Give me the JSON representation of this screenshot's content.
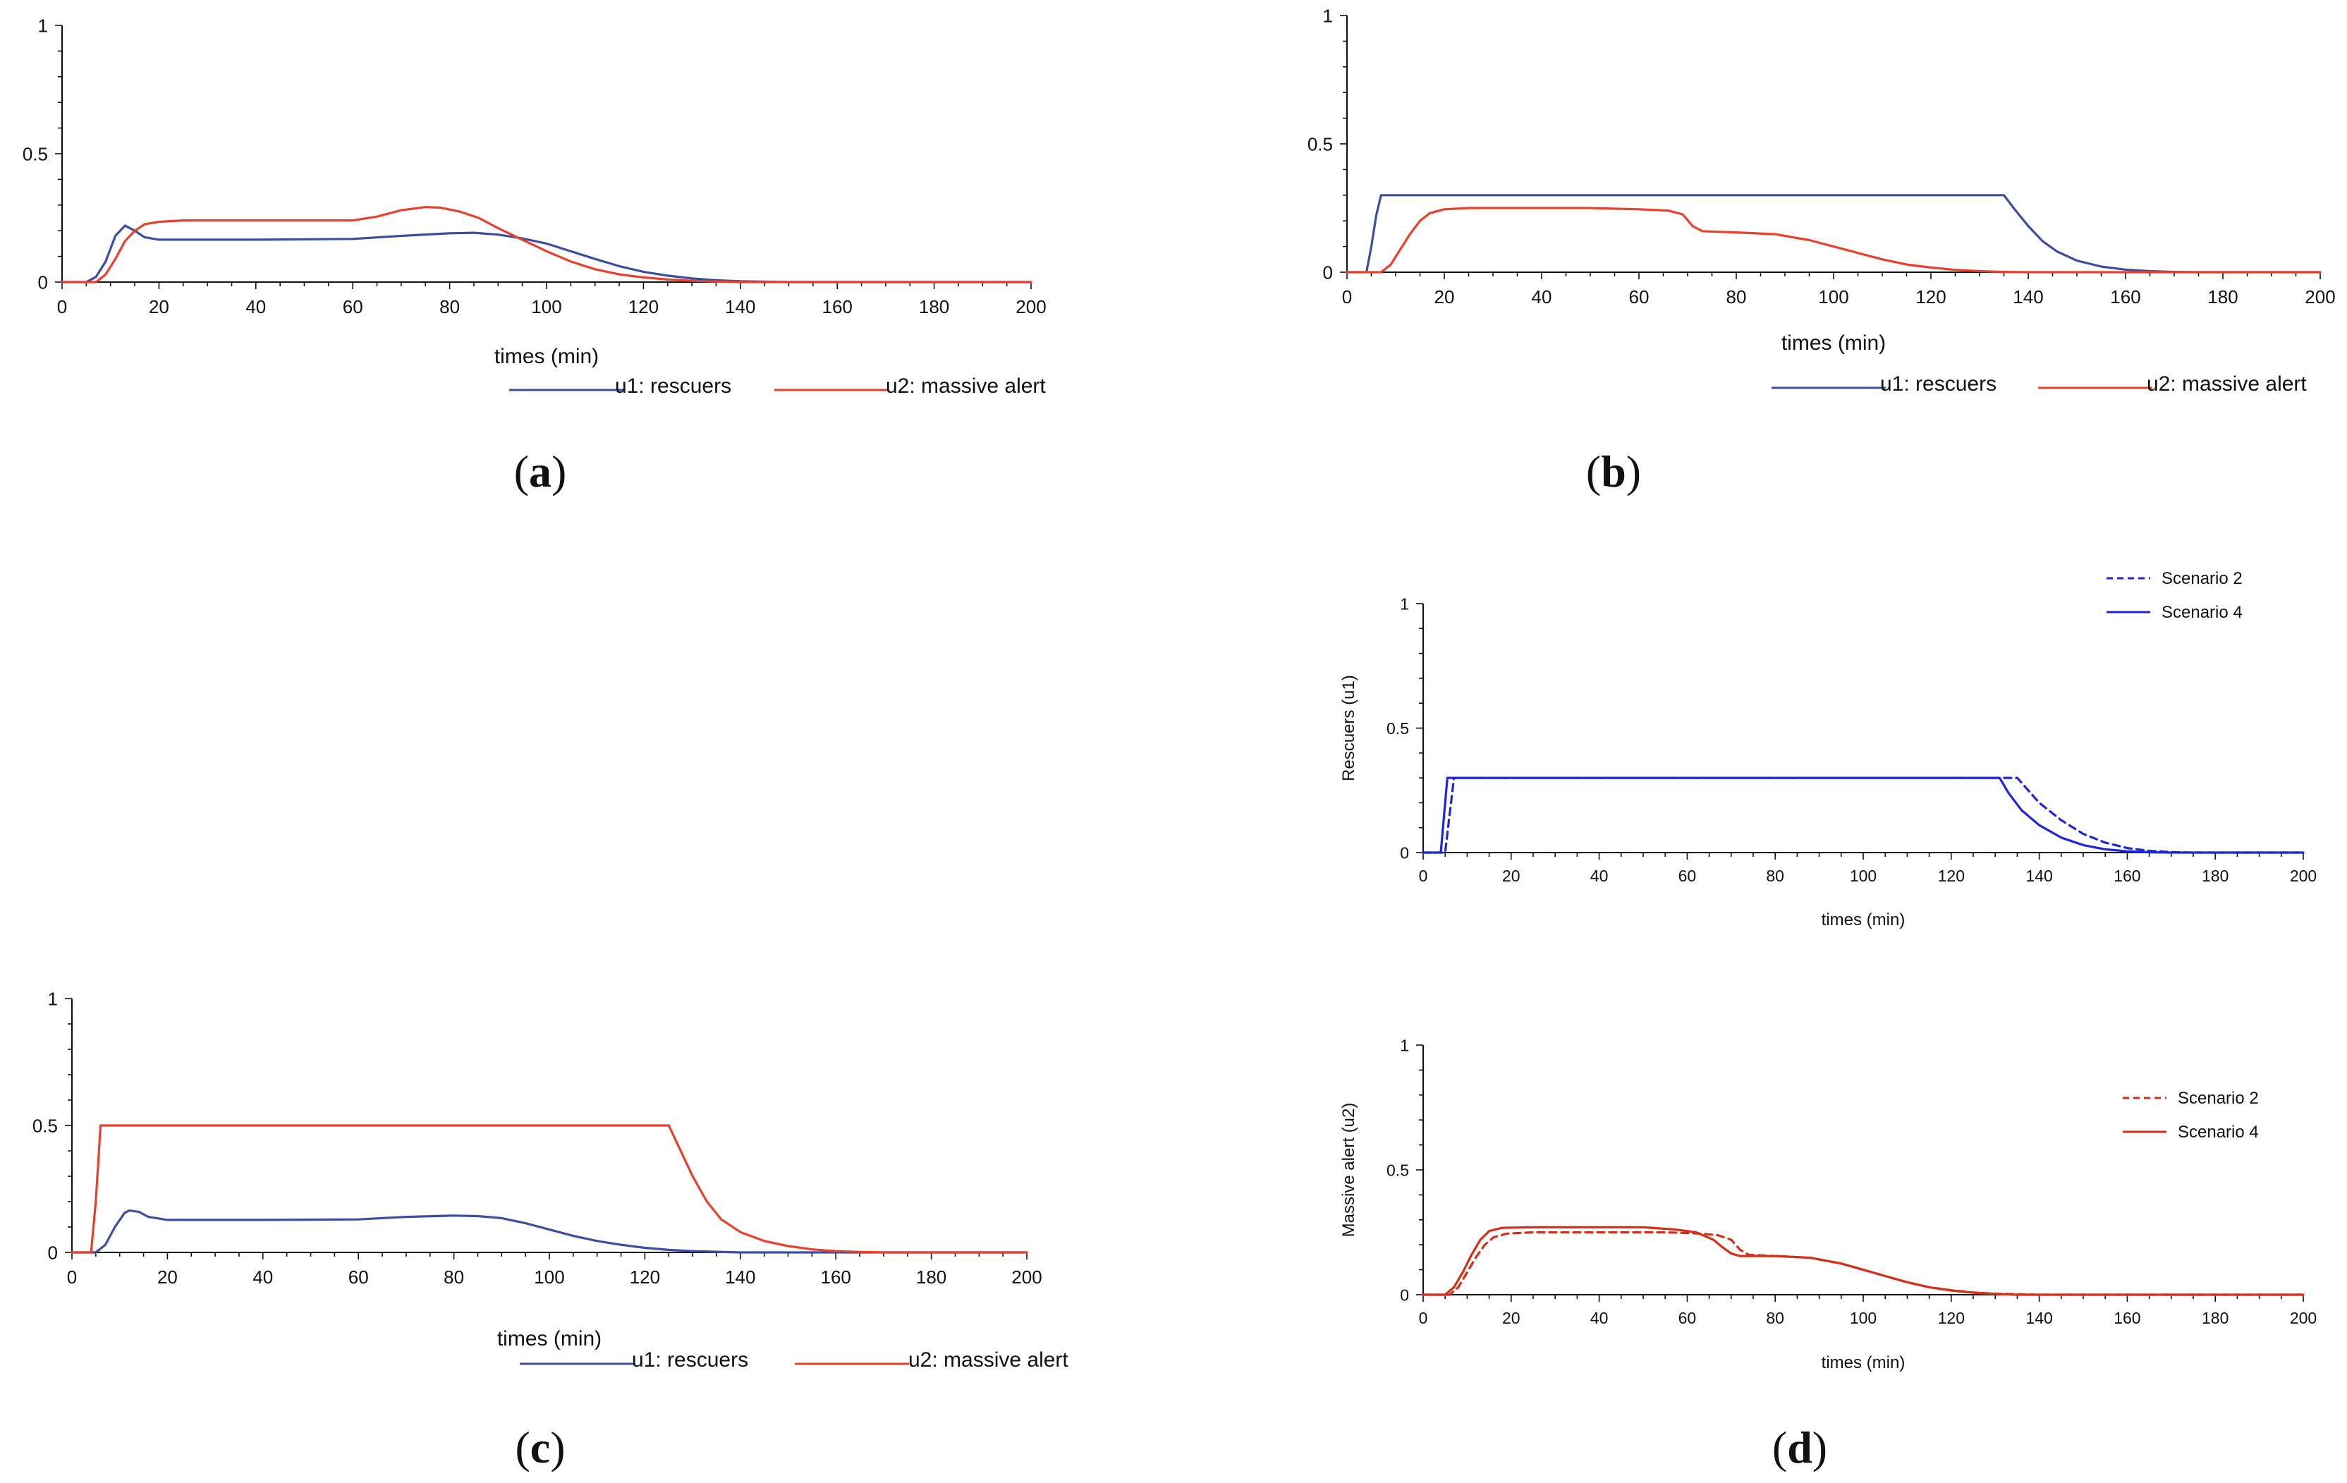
{
  "colors": {
    "u1": "#3c4ea0",
    "u2": "#e8402c",
    "s_blue": "#1f25d8",
    "s_red": "#d3301a",
    "axis": "#111111"
  },
  "chart_data": [
    {
      "id": "a",
      "type": "line",
      "caption_letter": "a",
      "xlabel": "times (min)",
      "ylabel": "",
      "xlim": [
        0,
        200
      ],
      "ylim": [
        0,
        1
      ],
      "xticks": [
        0,
        20,
        40,
        60,
        80,
        100,
        120,
        140,
        160,
        180,
        200
      ],
      "yticks": [
        0,
        0.5,
        1
      ],
      "ytick_labels": [
        "0",
        "0.5",
        "1"
      ],
      "legend_position": "bottom-right",
      "series": [
        {
          "name": "u1: rescuers",
          "color_key": "u1",
          "dash": false,
          "points": [
            [
              0,
              0
            ],
            [
              5,
              0
            ],
            [
              7,
              0.02
            ],
            [
              9,
              0.08
            ],
            [
              11,
              0.18
            ],
            [
              13,
              0.22
            ],
            [
              15,
              0.2
            ],
            [
              17,
              0.175
            ],
            [
              20,
              0.165
            ],
            [
              40,
              0.165
            ],
            [
              60,
              0.168
            ],
            [
              70,
              0.18
            ],
            [
              80,
              0.19
            ],
            [
              85,
              0.192
            ],
            [
              90,
              0.185
            ],
            [
              95,
              0.17
            ],
            [
              100,
              0.15
            ],
            [
              105,
              0.12
            ],
            [
              110,
              0.09
            ],
            [
              115,
              0.062
            ],
            [
              120,
              0.04
            ],
            [
              125,
              0.025
            ],
            [
              130,
              0.014
            ],
            [
              135,
              0.007
            ],
            [
              140,
              0.003
            ],
            [
              150,
              0
            ],
            [
              200,
              0
            ]
          ]
        },
        {
          "name": "u2: massive alert",
          "color_key": "u2",
          "dash": false,
          "points": [
            [
              0,
              0
            ],
            [
              7,
              0
            ],
            [
              9,
              0.03
            ],
            [
              11,
              0.09
            ],
            [
              13,
              0.16
            ],
            [
              15,
              0.2
            ],
            [
              17,
              0.225
            ],
            [
              20,
              0.235
            ],
            [
              25,
              0.24
            ],
            [
              60,
              0.24
            ],
            [
              65,
              0.255
            ],
            [
              70,
              0.28
            ],
            [
              75,
              0.292
            ],
            [
              78,
              0.29
            ],
            [
              82,
              0.275
            ],
            [
              86,
              0.25
            ],
            [
              90,
              0.21
            ],
            [
              95,
              0.165
            ],
            [
              100,
              0.12
            ],
            [
              105,
              0.08
            ],
            [
              110,
              0.05
            ],
            [
              115,
              0.03
            ],
            [
              120,
              0.018
            ],
            [
              125,
              0.01
            ],
            [
              130,
              0.005
            ],
            [
              135,
              0.002
            ],
            [
              140,
              0
            ],
            [
              200,
              0
            ]
          ]
        }
      ]
    },
    {
      "id": "b",
      "type": "line",
      "caption_letter": "b",
      "xlabel": "times (min)",
      "ylabel": "",
      "xlim": [
        0,
        200
      ],
      "ylim": [
        0,
        1
      ],
      "xticks": [
        0,
        20,
        40,
        60,
        80,
        100,
        120,
        140,
        160,
        180,
        200
      ],
      "yticks": [
        0,
        0.5,
        1
      ],
      "ytick_labels": [
        "0",
        "0.5",
        "1"
      ],
      "legend_position": "bottom-right",
      "series": [
        {
          "name": "u1: rescuers",
          "color_key": "u1",
          "dash": false,
          "points": [
            [
              0,
              0
            ],
            [
              4,
              0
            ],
            [
              5,
              0.1
            ],
            [
              6,
              0.22
            ],
            [
              7,
              0.3
            ],
            [
              135,
              0.3
            ],
            [
              137,
              0.25
            ],
            [
              140,
              0.18
            ],
            [
              143,
              0.12
            ],
            [
              146,
              0.08
            ],
            [
              150,
              0.045
            ],
            [
              155,
              0.022
            ],
            [
              160,
              0.01
            ],
            [
              165,
              0.004
            ],
            [
              170,
              0.001
            ],
            [
              175,
              0
            ],
            [
              200,
              0
            ]
          ]
        },
        {
          "name": "u2: massive alert",
          "color_key": "u2",
          "dash": false,
          "points": [
            [
              0,
              0
            ],
            [
              7,
              0
            ],
            [
              9,
              0.03
            ],
            [
              11,
              0.09
            ],
            [
              13,
              0.15
            ],
            [
              15,
              0.2
            ],
            [
              17,
              0.23
            ],
            [
              20,
              0.245
            ],
            [
              25,
              0.25
            ],
            [
              50,
              0.25
            ],
            [
              60,
              0.245
            ],
            [
              66,
              0.24
            ],
            [
              69,
              0.225
            ],
            [
              71,
              0.18
            ],
            [
              73,
              0.16
            ],
            [
              80,
              0.155
            ],
            [
              88,
              0.148
            ],
            [
              95,
              0.125
            ],
            [
              100,
              0.1
            ],
            [
              105,
              0.075
            ],
            [
              110,
              0.05
            ],
            [
              115,
              0.03
            ],
            [
              120,
              0.018
            ],
            [
              125,
              0.009
            ],
            [
              130,
              0.004
            ],
            [
              135,
              0.001
            ],
            [
              140,
              0
            ],
            [
              200,
              0
            ]
          ]
        }
      ]
    },
    {
      "id": "c",
      "type": "line",
      "caption_letter": "c",
      "xlabel": "times (min)",
      "ylabel": "",
      "xlim": [
        0,
        200
      ],
      "ylim": [
        0,
        1
      ],
      "xticks": [
        0,
        20,
        40,
        60,
        80,
        100,
        120,
        140,
        160,
        180,
        200
      ],
      "yticks": [
        0,
        0.5,
        1
      ],
      "ytick_labels": [
        "0",
        "0.5",
        "1"
      ],
      "legend_position": "bottom-right",
      "series": [
        {
          "name": "u1: rescuers",
          "color_key": "u1",
          "dash": false,
          "points": [
            [
              0,
              0
            ],
            [
              5,
              0
            ],
            [
              7,
              0.03
            ],
            [
              9,
              0.1
            ],
            [
              11,
              0.155
            ],
            [
              12,
              0.165
            ],
            [
              14,
              0.16
            ],
            [
              16,
              0.14
            ],
            [
              20,
              0.128
            ],
            [
              40,
              0.128
            ],
            [
              60,
              0.13
            ],
            [
              70,
              0.14
            ],
            [
              80,
              0.145
            ],
            [
              85,
              0.143
            ],
            [
              90,
              0.135
            ],
            [
              95,
              0.115
            ],
            [
              100,
              0.09
            ],
            [
              105,
              0.065
            ],
            [
              110,
              0.045
            ],
            [
              115,
              0.03
            ],
            [
              120,
              0.018
            ],
            [
              125,
              0.01
            ],
            [
              130,
              0.005
            ],
            [
              140,
              0
            ],
            [
              200,
              0
            ]
          ]
        },
        {
          "name": "u2: massive alert",
          "color_key": "u2",
          "dash": false,
          "points": [
            [
              0,
              0
            ],
            [
              4,
              0
            ],
            [
              5,
              0.2
            ],
            [
              6,
              0.5
            ],
            [
              125,
              0.5
            ],
            [
              127,
              0.42
            ],
            [
              130,
              0.3
            ],
            [
              133,
              0.2
            ],
            [
              136,
              0.13
            ],
            [
              140,
              0.08
            ],
            [
              145,
              0.045
            ],
            [
              150,
              0.025
            ],
            [
              155,
              0.012
            ],
            [
              160,
              0.005
            ],
            [
              165,
              0.002
            ],
            [
              170,
              0
            ],
            [
              200,
              0
            ]
          ]
        }
      ]
    },
    {
      "id": "d1",
      "type": "line",
      "caption_letter": "",
      "xlabel": "times (min)",
      "ylabel": "Rescuers (u1)",
      "xlim": [
        0,
        200
      ],
      "ylim": [
        0,
        1
      ],
      "xticks": [
        0,
        20,
        40,
        60,
        80,
        100,
        120,
        140,
        160,
        180,
        200
      ],
      "yticks": [
        0,
        0.5,
        1
      ],
      "ytick_labels": [
        "0",
        "0.5",
        "1"
      ],
      "legend_position": "top-right",
      "series": [
        {
          "name": "Scenario 2",
          "color_key": "s_blue",
          "dash": true,
          "points": [
            [
              0,
              0
            ],
            [
              5,
              0
            ],
            [
              6,
              0.15
            ],
            [
              7,
              0.3
            ],
            [
              135,
              0.3
            ],
            [
              137,
              0.26
            ],
            [
              140,
              0.2
            ],
            [
              145,
              0.13
            ],
            [
              150,
              0.075
            ],
            [
              155,
              0.04
            ],
            [
              160,
              0.018
            ],
            [
              165,
              0.007
            ],
            [
              170,
              0.002
            ],
            [
              175,
              0
            ],
            [
              200,
              0
            ]
          ]
        },
        {
          "name": "Scenario 4",
          "color_key": "s_blue",
          "dash": false,
          "points": [
            [
              0,
              0
            ],
            [
              4,
              0
            ],
            [
              5,
              0.2
            ],
            [
              5.5,
              0.3
            ],
            [
              131,
              0.3
            ],
            [
              133,
              0.24
            ],
            [
              136,
              0.17
            ],
            [
              140,
              0.11
            ],
            [
              145,
              0.06
            ],
            [
              150,
              0.03
            ],
            [
              155,
              0.013
            ],
            [
              160,
              0.005
            ],
            [
              165,
              0.001
            ],
            [
              170,
              0
            ],
            [
              200,
              0
            ]
          ]
        }
      ]
    },
    {
      "id": "d2",
      "type": "line",
      "caption_letter": "d",
      "xlabel": "times (min)",
      "ylabel": "Massive alert (u2)",
      "xlim": [
        0,
        200
      ],
      "ylim": [
        0,
        1
      ],
      "xticks": [
        0,
        20,
        40,
        60,
        80,
        100,
        120,
        140,
        160,
        180,
        200
      ],
      "yticks": [
        0,
        0.5,
        1
      ],
      "ytick_labels": [
        "0",
        "0.5",
        "1"
      ],
      "legend_position": "right",
      "series": [
        {
          "name": "Scenario 2",
          "color_key": "s_red",
          "dash": true,
          "points": [
            [
              0,
              0
            ],
            [
              6,
              0
            ],
            [
              8,
              0.03
            ],
            [
              10,
              0.09
            ],
            [
              12,
              0.15
            ],
            [
              14,
              0.2
            ],
            [
              16,
              0.23
            ],
            [
              19,
              0.245
            ],
            [
              25,
              0.25
            ],
            [
              55,
              0.25
            ],
            [
              63,
              0.245
            ],
            [
              67,
              0.238
            ],
            [
              70,
              0.22
            ],
            [
              72,
              0.18
            ],
            [
              74,
              0.16
            ],
            [
              80,
              0.155
            ],
            [
              88,
              0.148
            ],
            [
              95,
              0.125
            ],
            [
              100,
              0.1
            ],
            [
              105,
              0.075
            ],
            [
              110,
              0.05
            ],
            [
              115,
              0.03
            ],
            [
              120,
              0.018
            ],
            [
              125,
              0.009
            ],
            [
              130,
              0.004
            ],
            [
              140,
              0
            ],
            [
              200,
              0
            ]
          ]
        },
        {
          "name": "Scenario 4",
          "color_key": "s_red",
          "dash": false,
          "points": [
            [
              0,
              0
            ],
            [
              5,
              0
            ],
            [
              7,
              0.03
            ],
            [
              9,
              0.09
            ],
            [
              11,
              0.16
            ],
            [
              13,
              0.22
            ],
            [
              15,
              0.255
            ],
            [
              18,
              0.268
            ],
            [
              25,
              0.27
            ],
            [
              50,
              0.27
            ],
            [
              57,
              0.262
            ],
            [
              62,
              0.25
            ],
            [
              66,
              0.22
            ],
            [
              68,
              0.19
            ],
            [
              70,
              0.165
            ],
            [
              72,
              0.155
            ],
            [
              80,
              0.155
            ],
            [
              88,
              0.148
            ],
            [
              95,
              0.125
            ],
            [
              100,
              0.1
            ],
            [
              105,
              0.075
            ],
            [
              110,
              0.05
            ],
            [
              115,
              0.03
            ],
            [
              120,
              0.017
            ],
            [
              125,
              0.008
            ],
            [
              130,
              0.003
            ],
            [
              135,
              0
            ],
            [
              200,
              0
            ]
          ]
        }
      ]
    }
  ]
}
